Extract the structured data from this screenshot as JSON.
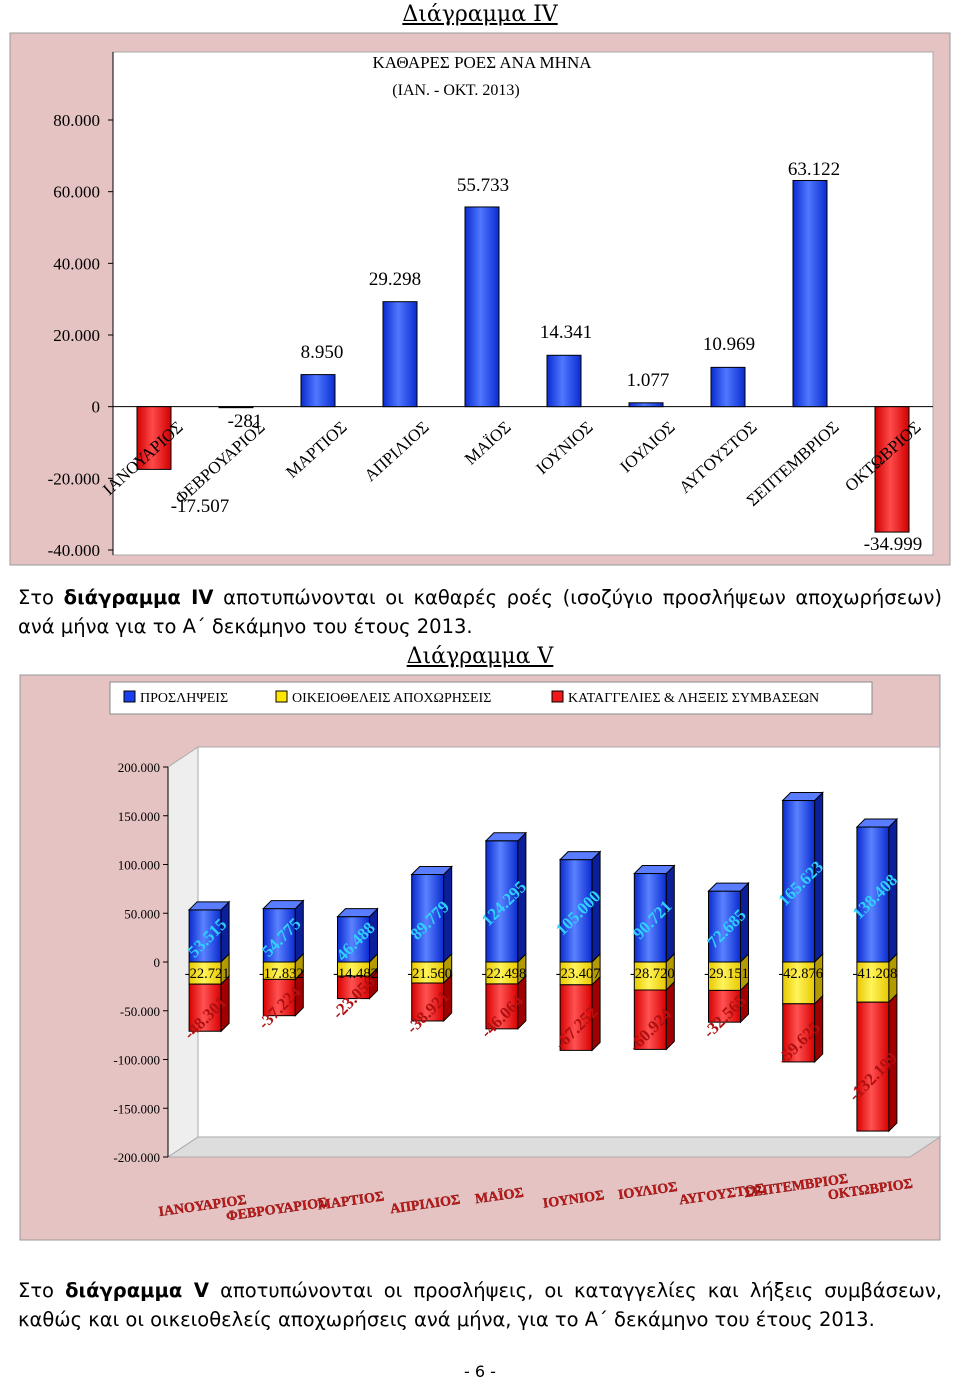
{
  "page": {
    "heading1": "Διάγραμμα IV",
    "para1_prefix": "Στο ",
    "para1_bold": "διάγραμμα IV",
    "para1_text": " αποτυπώνονται οι καθαρές ροές (ισοζύγιο προσλήψεων αποχωρήσεων) ανά μήνα για το Α΄ δεκάμηνο του έτους 2013.",
    "heading2": "Διάγραμμα V",
    "para2_prefix": "Στο ",
    "para2_bold": "διάγραμμα V",
    "para2_text": " αποτυπώνονται οι προσλήψεις, οι καταγγελίες και λήξεις συμβάσεων, καθώς και οι οικειοθελείς αποχωρήσεις ανά μήνα, για το Α΄ δεκάμηνο του έτους 2013.",
    "page_number": "- 6 -"
  },
  "colors": {
    "background": "#e5c3c3",
    "blue": "#1a3ff0",
    "yellow": "#ffe600",
    "red": "#f01818"
  },
  "chart_data": [
    {
      "type": "bar",
      "title": "ΚΑΘΑΡΕΣ ΡΟΕΣ ΑΝΑ ΜΗΝΑ",
      "subtitle": "(ΙΑΝ. - ΟΚΤ. 2013)",
      "categories": [
        "ΙΑΝΟΥΑΡΙΟΣ",
        "ΦΕΒΡΟΥΑΡΙΟΣ",
        "ΜΑΡΤΙΟΣ",
        "ΑΠΡΙΛΙΟΣ",
        "ΜΑΪΟΣ",
        "ΙΟΥΝΙΟΣ",
        "ΙΟΥΛΙΟΣ",
        "ΑΥΓΟΥΣΤΟΣ",
        "ΣΕΠΤΕΜΒΡΙΟΣ",
        "ΟΚΤΩΒΡΙΟΣ"
      ],
      "values": [
        -17507,
        -281,
        8950,
        29298,
        55733,
        14341,
        1077,
        10969,
        63122,
        -34999
      ],
      "value_labels": [
        "-17.507",
        "-281",
        "8.950",
        "29.298",
        "55.733",
        "14.341",
        "1.077",
        "10.969",
        "63.122",
        "-34.999"
      ],
      "y_ticks": [
        "80.000",
        "60.000",
        "40.000",
        "20.000",
        "0",
        "-20.000",
        "-40.000"
      ],
      "ylim": [
        -40000,
        80000
      ],
      "grid": false,
      "legend": "none"
    },
    {
      "type": "bar",
      "stacked": true,
      "categories": [
        "ΙΑΝΟΥΑΡΙΟΣ",
        "ΦΕΒΡΟΥΑΡΙΟΣ",
        "ΜΑΡΤΙΟΣ",
        "ΑΠΡΙΛΙΟΣ",
        "ΜΑΪΟΣ",
        "ΙΟΥΝΙΟΣ",
        "ΙΟΥΛΙΟΣ",
        "ΑΥΓΟΥΣΤΟΣ",
        "ΣΕΠΤΕΜΒΡΙΟΣ",
        "ΟΚΤΩΒΡΙΟΣ"
      ],
      "series": [
        {
          "name": "ΠΡΟΣΛΗΨΕΙΣ",
          "color": "#1a3ff0",
          "values": [
            53515,
            54775,
            46488,
            89779,
            124295,
            105000,
            90721,
            72685,
            165623,
            138408
          ],
          "labels": [
            "53.515",
            "54.775",
            "46.488",
            "89.779",
            "124.295",
            "105.000",
            "90.721",
            "72.685",
            "165.623",
            "138.408"
          ]
        },
        {
          "name": "ΟΙΚΕΙΟΘΕΛΕΙΣ ΑΠΟΧΩΡΗΣΕΙΣ",
          "color": "#ffe600",
          "values": [
            -22721,
            -17832,
            -14482,
            -21560,
            -22498,
            -23407,
            -28720,
            -29151,
            -42876,
            -41208
          ],
          "labels": [
            "-22.721",
            "-17.832",
            "-14.482",
            "-21.560",
            "-22.498",
            "-23.407",
            "-28.720",
            "-29.151",
            "-42.876",
            "-41.208"
          ]
        },
        {
          "name": "ΚΑΤΑΓΓΕΛΙΕΣ & ΛΗΞΕΙΣ ΣΥΜΒΑΣΕΩΝ",
          "color": "#f01818",
          "values": [
            -48301,
            -37224,
            -23056,
            -38921,
            -46064,
            -67252,
            -60924,
            -32565,
            -59625,
            -132199
          ],
          "labels": [
            "-48.301",
            "-37.224",
            "-23.056",
            "-38.921",
            "-46.064",
            "-67.252",
            "-60.924",
            "-32.565",
            "-59.625",
            "-132.199"
          ]
        }
      ],
      "y_ticks": [
        "200.000",
        "150.000",
        "100.000",
        "50.000",
        "0",
        "-50.000",
        "-100.000",
        "-150.000",
        "-200.000"
      ],
      "ylim": [
        -200000,
        200000
      ],
      "grid": false,
      "legend": "top"
    }
  ]
}
